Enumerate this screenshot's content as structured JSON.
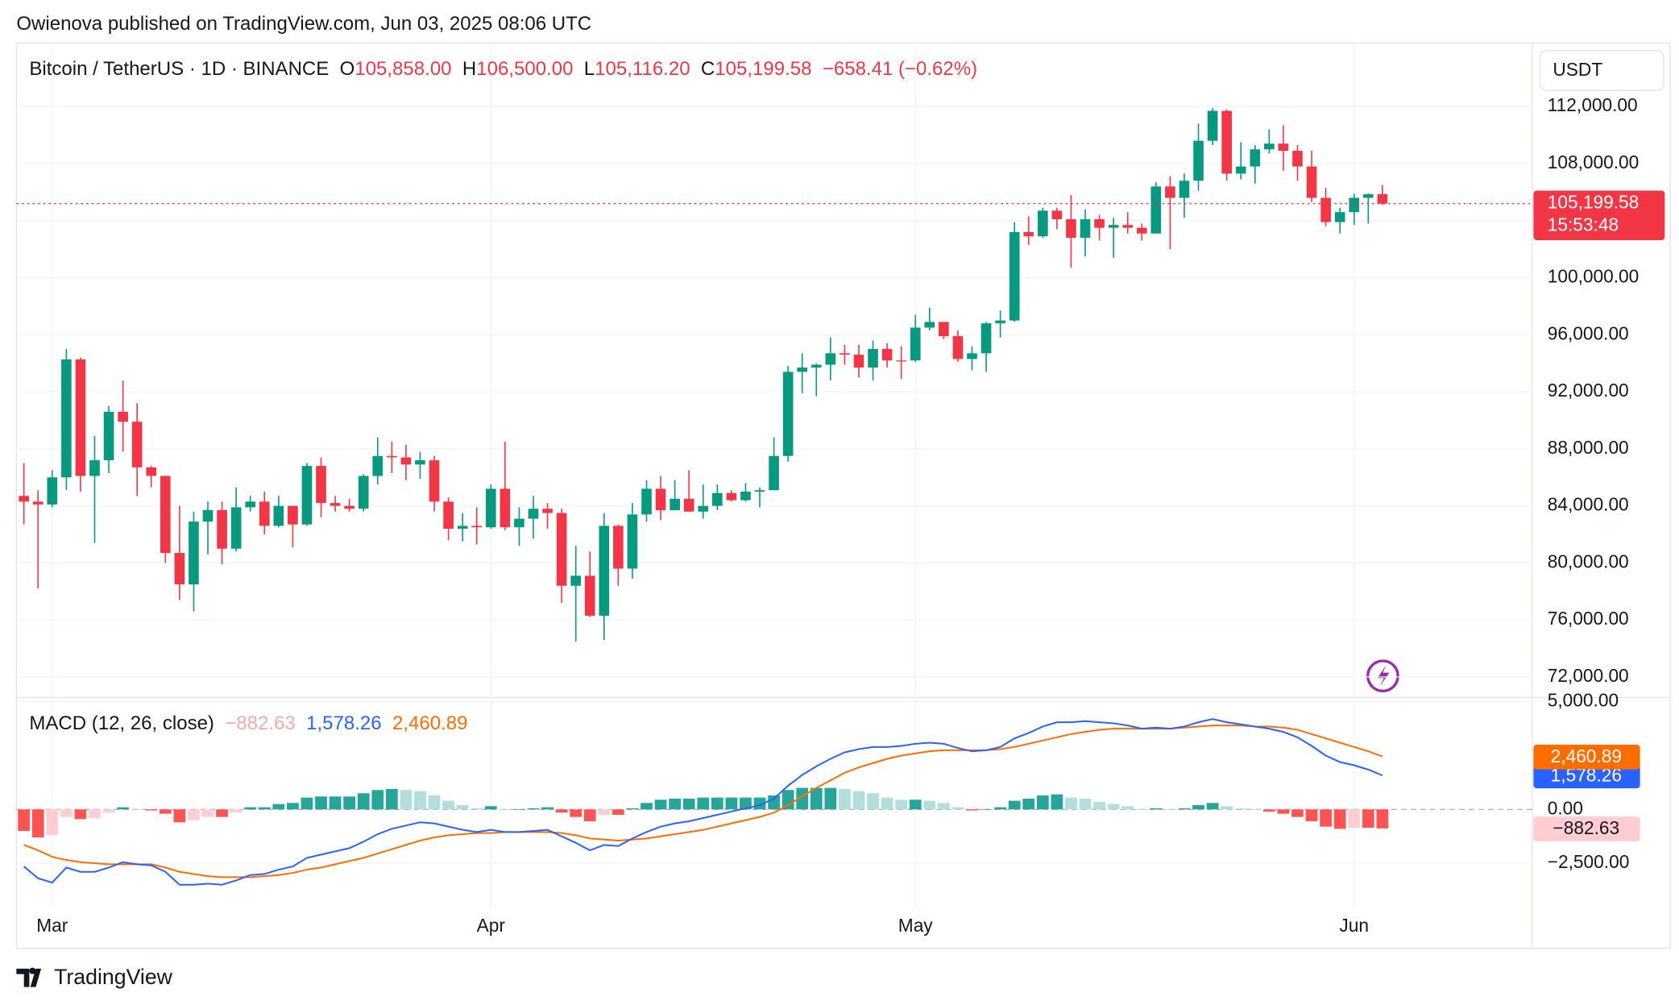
{
  "header": {
    "publisher": "Owienova published on TradingView.com, Jun 03, 2025 08:06 UTC",
    "footer": "TradingView"
  },
  "chart_data": [
    {
      "type": "candlestick",
      "title": "Bitcoin / TetherUS · 1D · BINANCE",
      "ohlc_legend": [
        {
          "key": "O",
          "value": "105,858.00"
        },
        {
          "key": "H",
          "value": "106,500.00"
        },
        {
          "key": "L",
          "value": "105,116.20"
        },
        {
          "key": "C",
          "value": "105,199.58"
        }
      ],
      "change": "−658.41 (−0.62%)",
      "currency": "USDT",
      "last_price_label": "105,199.58",
      "countdown": "15:53:48",
      "up_color": "#089981",
      "down_color": "#f23645",
      "open": [
        84700,
        84300,
        84100,
        86000,
        94270,
        86100,
        87200,
        90600,
        89900,
        86700,
        86100,
        80700,
        78500,
        82900,
        83700,
        81000,
        83900,
        84300,
        82600,
        84000,
        82700,
        86800,
        84200,
        84000,
        83800,
        86100,
        87500,
        87400,
        86900,
        87200,
        84300,
        82400,
        82600,
        82500,
        85200,
        82500,
        83100,
        83800,
        83500,
        78400,
        79100,
        76300,
        82600,
        79600,
        83400,
        85200,
        83700,
        84500,
        83600,
        84000,
        84900,
        84400,
        85000,
        85100,
        87500,
        93400,
        93700,
        93900,
        94700,
        94600,
        93700,
        95000,
        94200,
        94200,
        96500,
        96900,
        95900,
        94300,
        94700,
        96800,
        97000,
        103200,
        102900,
        104700,
        104100,
        102800,
        104100,
        103500,
        103700,
        103500,
        103100,
        106400,
        105600,
        106800,
        109600,
        111700,
        107300,
        107800,
        109000,
        109400,
        108900,
        107800,
        105600,
        103900,
        104600,
        105600,
        105858
      ],
      "high": [
        87000,
        85100,
        86500,
        95000,
        94400,
        88900,
        91000,
        92800,
        91200,
        86800,
        86100,
        84000,
        83600,
        84300,
        84300,
        85300,
        84700,
        85000,
        84700,
        84000,
        87000,
        87400,
        84700,
        84500,
        86200,
        88800,
        88500,
        88300,
        87800,
        87500,
        84600,
        83500,
        83900,
        85500,
        88500,
        83900,
        84700,
        84200,
        83800,
        81200,
        80800,
        83500,
        82700,
        84200,
        85800,
        86100,
        85800,
        86500,
        85500,
        85500,
        85100,
        85600,
        85300,
        88800,
        93800,
        94700,
        94000,
        95800,
        95300,
        95300,
        95600,
        95400,
        95200,
        97400,
        97900,
        96900,
        96300,
        95200,
        96900,
        97700,
        103900,
        104300,
        104900,
        104900,
        105800,
        104800,
        104400,
        104200,
        104600,
        103800,
        106700,
        107100,
        107300,
        110800,
        111900,
        111800,
        109500,
        109300,
        110400,
        110700,
        109300,
        108900,
        106300,
        104900,
        105900,
        105900,
        106500
      ],
      "low": [
        82700,
        78200,
        83900,
        85100,
        85000,
        81400,
        86300,
        87800,
        84700,
        85300,
        80000,
        77400,
        76600,
        80600,
        79900,
        80800,
        83600,
        82000,
        82500,
        81100,
        82600,
        83200,
        83600,
        83600,
        83600,
        85500,
        86300,
        85800,
        85900,
        83600,
        81600,
        81500,
        81300,
        82400,
        82300,
        81200,
        81700,
        82400,
        77200,
        74500,
        76200,
        74600,
        78400,
        78900,
        82900,
        83000,
        83700,
        83600,
        83100,
        83700,
        84300,
        84300,
        83900,
        85100,
        87100,
        91900,
        91700,
        92800,
        93900,
        93000,
        92800,
        93700,
        92900,
        94100,
        96300,
        95700,
        94100,
        93500,
        93400,
        95800,
        96900,
        102300,
        102800,
        103400,
        100700,
        101500,
        102600,
        101400,
        103100,
        102600,
        103100,
        102000,
        104200,
        106100,
        109300,
        106800,
        106900,
        106600,
        108700,
        107500,
        106800,
        105300,
        103600,
        103100,
        103700,
        103800,
        105116.2
      ],
      "close": [
        84300,
        84100,
        86000,
        94270,
        86100,
        87200,
        90600,
        89900,
        86700,
        86100,
        80700,
        78500,
        82900,
        83700,
        81000,
        83900,
        84300,
        82600,
        84000,
        82700,
        86800,
        84200,
        84000,
        83800,
        86100,
        87500,
        87400,
        86900,
        87200,
        84300,
        82400,
        82600,
        82500,
        85200,
        82500,
        83100,
        83800,
        83500,
        78400,
        79100,
        76300,
        82600,
        79600,
        83400,
        85200,
        83700,
        84500,
        83600,
        84000,
        84900,
        84400,
        85000,
        85100,
        87500,
        93400,
        93700,
        93900,
        94700,
        94600,
        93700,
        95000,
        94200,
        94170,
        96500,
        96900,
        95900,
        94300,
        94700,
        96800,
        97000,
        103200,
        102900,
        104700,
        104100,
        102800,
        104100,
        103500,
        103700,
        103500,
        103100,
        106400,
        105600,
        106800,
        109600,
        111700,
        107300,
        107800,
        109000,
        109400,
        108900,
        107800,
        105600,
        103900,
        104600,
        105600,
        105858,
        105199.58
      ],
      "xlim": [
        -0.53,
        106.6
      ],
      "xticks": [
        {
          "value": 2,
          "label": "Mar"
        },
        {
          "value": 33,
          "label": "Apr"
        },
        {
          "value": 63,
          "label": "May"
        },
        {
          "value": 94,
          "label": "Jun"
        }
      ],
      "ylim": [
        70566,
        115925
      ],
      "yticks": [
        {
          "value": 72000,
          "label": "72,000.00"
        },
        {
          "value": 76000,
          "label": "76,000.00"
        },
        {
          "value": 80000,
          "label": "80,000.00"
        },
        {
          "value": 84000,
          "label": "84,000.00"
        },
        {
          "value": 88000,
          "label": "88,000.00"
        },
        {
          "value": 92000,
          "label": "92,000.00"
        },
        {
          "value": 96000,
          "label": "96,000.00"
        },
        {
          "value": 100000,
          "label": "100,000.00"
        },
        {
          "value": 104000,
          "label": "104,000.00"
        },
        {
          "value": 108000,
          "label": "108,000.00"
        },
        {
          "value": 112000,
          "label": "112,000.00"
        }
      ],
      "grid": true
    },
    {
      "type": "macd",
      "title": "MACD (12, 26, close)",
      "hist_colors": [
        "#26a69a",
        "#b2dfdb",
        "#ff5252",
        "#ffcdd2"
      ],
      "series": [
        {
          "color": "#f7a9a7",
          "value_label": "−882.63",
          "label_bg": "#ffcdd2",
          "label_color": "#131722",
          "values": [
            -1000,
            -1300,
            -1200,
            -350,
            -450,
            -400,
            -150,
            100,
            0,
            -50,
            -200,
            -600,
            -500,
            -350,
            -350,
            -150,
            100,
            100,
            250,
            300,
            550,
            600,
            600,
            600,
            750,
            900,
            950,
            900,
            850,
            650,
            400,
            200,
            50,
            150,
            0,
            0,
            50,
            100,
            -150,
            -350,
            -550,
            -250,
            -250,
            50,
            300,
            450,
            500,
            500,
            550,
            550,
            550,
            550,
            550,
            650,
            900,
            1000,
            1000,
            1000,
            950,
            850,
            750,
            550,
            450,
            450,
            400,
            300,
            100,
            -50,
            0,
            100,
            400,
            500,
            650,
            700,
            550,
            500,
            350,
            250,
            150,
            0,
            50,
            0,
            50,
            200,
            300,
            150,
            50,
            0,
            -100,
            -200,
            -350,
            -550,
            -800,
            -900,
            -850,
            -850,
            -882.63
          ]
        },
        {
          "color": "#2962ff",
          "value_label": "1,578.26",
          "label_bg": "#2962ff",
          "label_color": "#ffffff",
          "values": [
            -2650,
            -3200,
            -3400,
            -2700,
            -2900,
            -2900,
            -2700,
            -2450,
            -2550,
            -2600,
            -2900,
            -3500,
            -3500,
            -3450,
            -3500,
            -3300,
            -3050,
            -3000,
            -2800,
            -2650,
            -2250,
            -2100,
            -1950,
            -1800,
            -1500,
            -1150,
            -900,
            -750,
            -600,
            -650,
            -800,
            -950,
            -1050,
            -950,
            -1050,
            -1050,
            -1000,
            -950,
            -1250,
            -1550,
            -1900,
            -1650,
            -1700,
            -1350,
            -1050,
            -800,
            -650,
            -550,
            -400,
            -250,
            -100,
            50,
            200,
            500,
            1100,
            1600,
            2000,
            2350,
            2650,
            2800,
            2900,
            2900,
            2950,
            3050,
            3100,
            3050,
            2850,
            2700,
            2750,
            2900,
            3300,
            3550,
            3850,
            4050,
            4050,
            4100,
            4050,
            4000,
            3900,
            3750,
            3800,
            3750,
            3850,
            4050,
            4200,
            4050,
            3950,
            3850,
            3750,
            3600,
            3350,
            2950,
            2500,
            2200,
            2050,
            1850,
            1578.26
          ]
        },
        {
          "color": "#ff6d00",
          "value_label": "2,460.89",
          "label_bg": "#ff6d00",
          "label_color": "#ffffff",
          "values": [
            -1650,
            -1900,
            -2200,
            -2350,
            -2450,
            -2500,
            -2550,
            -2550,
            -2550,
            -2550,
            -2700,
            -2900,
            -3000,
            -3100,
            -3150,
            -3150,
            -3150,
            -3100,
            -3050,
            -2950,
            -2800,
            -2700,
            -2550,
            -2400,
            -2250,
            -2050,
            -1850,
            -1650,
            -1450,
            -1300,
            -1200,
            -1150,
            -1100,
            -1100,
            -1050,
            -1050,
            -1050,
            -1050,
            -1100,
            -1200,
            -1350,
            -1400,
            -1450,
            -1400,
            -1350,
            -1250,
            -1150,
            -1050,
            -950,
            -800,
            -650,
            -500,
            -350,
            -150,
            200,
            600,
            1000,
            1350,
            1700,
            1950,
            2150,
            2350,
            2500,
            2600,
            2700,
            2750,
            2750,
            2750,
            2750,
            2800,
            2900,
            3050,
            3200,
            3350,
            3500,
            3600,
            3700,
            3750,
            3750,
            3750,
            3750,
            3750,
            3800,
            3850,
            3900,
            3900,
            3900,
            3850,
            3850,
            3800,
            3700,
            3500,
            3300,
            3100,
            2900,
            2700,
            2460.89
          ]
        }
      ],
      "ylim": [
        -4650,
        5100
      ],
      "yticks": [
        {
          "value": -2500,
          "label": "−2,500.00"
        },
        {
          "value": 0,
          "label": "0.00"
        },
        {
          "value": 5000,
          "label": "5,000.00"
        }
      ]
    }
  ]
}
